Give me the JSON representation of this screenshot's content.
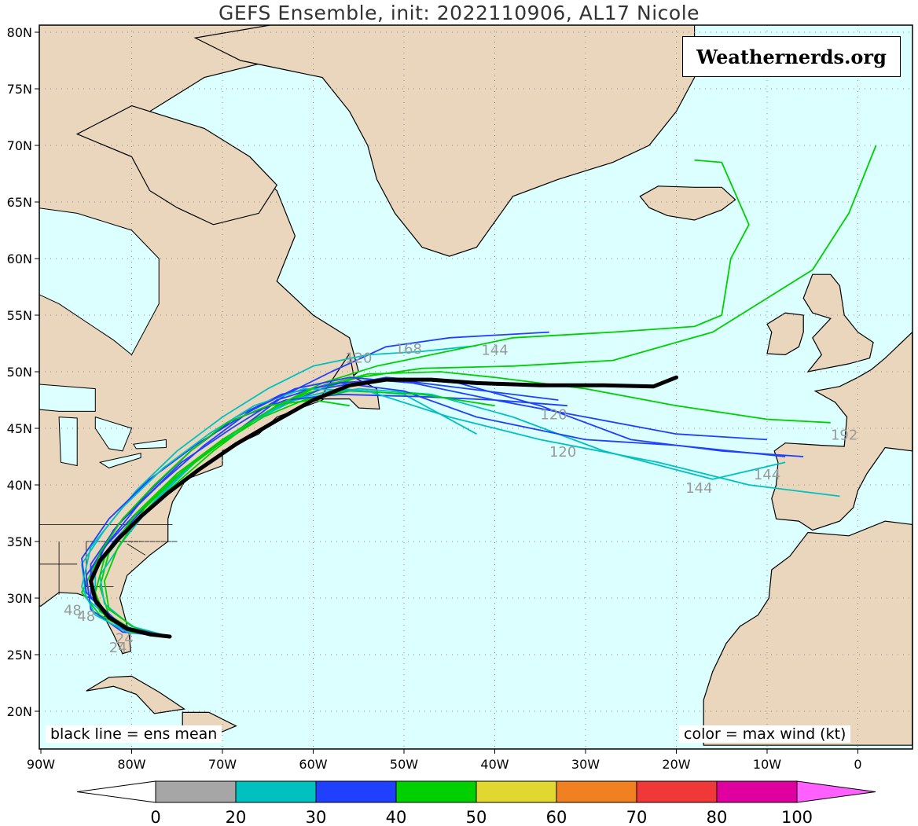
{
  "title": "GEFS Ensemble, init: 2022110906, AL17 Nicole",
  "brand": "Weathernerds.org",
  "notes": {
    "left": "black line = ens mean",
    "right": "color = max wind (kt)"
  },
  "axes": {
    "lat_labels": [
      "80N",
      "75N",
      "70N",
      "65N",
      "60N",
      "55N",
      "50N",
      "45N",
      "40N",
      "35N",
      "30N",
      "25N",
      "20N"
    ],
    "lon_labels": [
      "90W",
      "80W",
      "70W",
      "60W",
      "50W",
      "40W",
      "30W",
      "20W",
      "10W",
      "0"
    ]
  },
  "forecast_hour_labels": [
    "48",
    "48",
    "24",
    "24",
    "120",
    "168",
    "144",
    "120",
    "120",
    "144",
    "192",
    "144"
  ],
  "colors": {
    "ocean": "#dcffff",
    "land": "#ead6bc",
    "mean_track": "#000000"
  },
  "legend": {
    "labels": [
      "0",
      "20",
      "30",
      "40",
      "50",
      "60",
      "70",
      "80",
      "100"
    ],
    "bins": [
      {
        "range": "<0",
        "color": "#ffffff"
      },
      {
        "range": "0-20",
        "color": "#a6a6a6"
      },
      {
        "range": "20-30",
        "color": "#00c0c0"
      },
      {
        "range": "30-40",
        "color": "#2040ff"
      },
      {
        "range": "40-50",
        "color": "#00d000"
      },
      {
        "range": "50-60",
        "color": "#e0d830"
      },
      {
        "range": "60-70",
        "color": "#f08020"
      },
      {
        "range": "70-80",
        "color": "#f03838"
      },
      {
        "range": "80-100",
        "color": "#e000a0"
      },
      {
        "range": ">100",
        "color": "#ff60ff"
      }
    ]
  },
  "chart_data": {
    "type": "map",
    "lon_range": [
      -91,
      6
    ],
    "lat_range": [
      17,
      81
    ],
    "mean_track": [
      [
        -75.8,
        26.6
      ],
      [
        -78,
        26.8
      ],
      [
        -80.5,
        27.3
      ],
      [
        -82.5,
        28.3
      ],
      [
        -84,
        29.8
      ],
      [
        -84.5,
        31.5
      ],
      [
        -83.5,
        33.3
      ],
      [
        -81.5,
        35.2
      ],
      [
        -79,
        37.2
      ],
      [
        -76,
        39.3
      ],
      [
        -72.5,
        41.4
      ],
      [
        -68.5,
        43.6
      ],
      [
        -64,
        45.7
      ],
      [
        -60,
        47.5
      ],
      [
        -56,
        48.8
      ],
      [
        -52,
        49.3
      ],
      [
        -47,
        49.3
      ],
      [
        -42,
        49
      ],
      [
        -35,
        48.8
      ],
      [
        -28,
        48.8
      ],
      [
        -22.5,
        48.7
      ],
      [
        -20,
        49.5
      ]
    ],
    "member_tracks": [
      {
        "color": "#00d000",
        "points": [
          [
            -75.8,
            26.6
          ],
          [
            -80,
            27
          ],
          [
            -83.5,
            28.5
          ],
          [
            -85.5,
            30.5
          ],
          [
            -84,
            33
          ],
          [
            -80.5,
            36
          ],
          [
            -76,
            39.5
          ],
          [
            -71,
            43
          ],
          [
            -66,
            46
          ],
          [
            -61,
            48
          ],
          [
            -55,
            49.5
          ],
          [
            -48,
            50.3
          ],
          [
            -38,
            50.5
          ],
          [
            -27,
            51
          ],
          [
            -16,
            53.5
          ],
          [
            -5,
            59
          ],
          [
            -1,
            64
          ],
          [
            2,
            70
          ]
        ]
      },
      {
        "color": "#2040ff",
        "points": [
          [
            -75.8,
            26.6
          ],
          [
            -81,
            27.2
          ],
          [
            -84,
            29.5
          ],
          [
            -84.5,
            32
          ],
          [
            -82,
            35
          ],
          [
            -78,
            38.5
          ],
          [
            -73,
            42
          ],
          [
            -68,
            45
          ],
          [
            -63,
            48
          ],
          [
            -58,
            50
          ],
          [
            -52,
            52.2
          ],
          [
            -45,
            53
          ],
          [
            -34,
            53.5
          ]
        ]
      },
      {
        "color": "#00c0c0",
        "points": [
          [
            -75.8,
            26.6
          ],
          [
            -81.5,
            27.5
          ],
          [
            -85,
            30
          ],
          [
            -85.5,
            33
          ],
          [
            -83,
            36
          ],
          [
            -79.5,
            39.5
          ],
          [
            -75,
            43
          ],
          [
            -70,
            46
          ],
          [
            -65,
            48.5
          ],
          [
            -60,
            50.5
          ],
          [
            -54,
            51.5
          ],
          [
            -48,
            51.8
          ],
          [
            -42,
            52.3
          ]
        ]
      },
      {
        "color": "#2040ff",
        "points": [
          [
            -75.8,
            26.6
          ],
          [
            -80,
            27
          ],
          [
            -83.5,
            29
          ],
          [
            -84.5,
            31.5
          ],
          [
            -83,
            34.5
          ],
          [
            -79.5,
            37.5
          ],
          [
            -75,
            41
          ],
          [
            -70,
            44
          ],
          [
            -65,
            46.5
          ],
          [
            -59,
            48.5
          ],
          [
            -52,
            49.5
          ],
          [
            -44,
            49
          ],
          [
            -35,
            47
          ],
          [
            -25,
            44
          ],
          [
            -15,
            43
          ],
          [
            -6,
            42.5
          ]
        ]
      },
      {
        "color": "#00c0c0",
        "points": [
          [
            -75.8,
            26.6
          ],
          [
            -80.5,
            27.3
          ],
          [
            -84,
            29.5
          ],
          [
            -84,
            32.5
          ],
          [
            -81,
            35.5
          ],
          [
            -77,
            39
          ],
          [
            -72.5,
            42.5
          ],
          [
            -67,
            45.5
          ],
          [
            -62,
            47.5
          ],
          [
            -55,
            48.5
          ],
          [
            -47,
            48
          ],
          [
            -38,
            46
          ],
          [
            -28,
            43
          ],
          [
            -16,
            40.5
          ],
          [
            -8,
            42
          ]
        ]
      },
      {
        "color": "#2040ff",
        "points": [
          [
            -75.8,
            26.6
          ],
          [
            -81,
            27
          ],
          [
            -84.5,
            29
          ],
          [
            -85,
            32
          ],
          [
            -82.5,
            35
          ],
          [
            -79,
            38.5
          ],
          [
            -74.5,
            42
          ],
          [
            -69,
            45
          ],
          [
            -64,
            47.5
          ],
          [
            -58,
            49
          ],
          [
            -51,
            49.3
          ],
          [
            -43,
            48.5
          ],
          [
            -33,
            47.5
          ]
        ]
      },
      {
        "color": "#00d000",
        "points": [
          [
            -75.8,
            26.6
          ],
          [
            -79.5,
            27
          ],
          [
            -82.5,
            28.5
          ],
          [
            -83.5,
            31
          ],
          [
            -82.5,
            34
          ],
          [
            -79.5,
            37.5
          ],
          [
            -75,
            41
          ],
          [
            -70,
            44
          ],
          [
            -65,
            46.5
          ],
          [
            -60,
            48.5
          ],
          [
            -54,
            49.8
          ],
          [
            -46,
            50
          ],
          [
            -40,
            49.5
          ],
          [
            -30,
            48.5
          ],
          [
            -20,
            47
          ],
          [
            -10,
            45.8
          ],
          [
            -3,
            45.5
          ]
        ]
      },
      {
        "color": "#2040ff",
        "points": [
          [
            -75.8,
            26.6
          ],
          [
            -80.5,
            27
          ],
          [
            -84,
            29.5
          ],
          [
            -84.5,
            32.5
          ],
          [
            -82,
            36
          ],
          [
            -78,
            39.5
          ],
          [
            -73.5,
            43
          ],
          [
            -68.5,
            46
          ],
          [
            -63.5,
            48
          ],
          [
            -57,
            49
          ],
          [
            -50,
            48.3
          ],
          [
            -42,
            46
          ],
          [
            -30,
            44
          ],
          [
            -20,
            43.5
          ],
          [
            -8,
            42.5
          ]
        ]
      },
      {
        "color": "#00c0c0",
        "points": [
          [
            -75.8,
            26.6
          ],
          [
            -80,
            27.5
          ],
          [
            -83,
            29.5
          ],
          [
            -83.5,
            32
          ],
          [
            -81,
            35
          ],
          [
            -77.5,
            38.5
          ],
          [
            -73,
            42
          ],
          [
            -68,
            45
          ],
          [
            -62.5,
            47.5
          ],
          [
            -57,
            48.5
          ],
          [
            -50,
            48
          ],
          [
            -42,
            44.5
          ]
        ]
      },
      {
        "color": "#2040ff",
        "points": [
          [
            -75.8,
            26.6
          ],
          [
            -81,
            27.5
          ],
          [
            -85,
            30.5
          ],
          [
            -85.5,
            33.5
          ],
          [
            -82.5,
            37
          ],
          [
            -78,
            40.5
          ],
          [
            -73,
            43.5
          ],
          [
            -68,
            46
          ],
          [
            -63,
            47.5
          ],
          [
            -57,
            48
          ],
          [
            -48,
            47.8
          ],
          [
            -40,
            47.5
          ],
          [
            -32,
            47
          ]
        ]
      },
      {
        "color": "#00d000",
        "points": [
          [
            -75.8,
            26.6
          ],
          [
            -80,
            27
          ],
          [
            -83,
            28.5
          ],
          [
            -84,
            30.5
          ],
          [
            -83,
            33.5
          ],
          [
            -80,
            37
          ],
          [
            -75.5,
            40.5
          ],
          [
            -70.5,
            43.5
          ],
          [
            -65.5,
            46
          ],
          [
            -61,
            47.5
          ],
          [
            -56,
            48.3
          ],
          [
            -48,
            48
          ],
          [
            -40,
            47
          ]
        ]
      },
      {
        "color": "#00c0c0",
        "points": [
          [
            -75.8,
            26.6
          ],
          [
            -80.5,
            27
          ],
          [
            -84,
            28.5
          ],
          [
            -85.5,
            31
          ],
          [
            -84.5,
            34.5
          ],
          [
            -81,
            38
          ],
          [
            -76.5,
            41.5
          ],
          [
            -71.5,
            44.5
          ],
          [
            -66.5,
            47
          ],
          [
            -61,
            48.5
          ],
          [
            -54,
            48.3
          ],
          [
            -45,
            46
          ],
          [
            -35,
            44
          ],
          [
            -22,
            42
          ],
          [
            -12,
            40
          ],
          [
            -2,
            39
          ]
        ]
      },
      {
        "color": "#00d000",
        "points": [
          [
            -75.8,
            26.6
          ],
          [
            -79.5,
            27.3
          ],
          [
            -82.5,
            29
          ],
          [
            -83,
            31.5
          ],
          [
            -81.5,
            34.5
          ],
          [
            -78.5,
            38
          ],
          [
            -74,
            41.5
          ],
          [
            -69,
            44.5
          ],
          [
            -64,
            47
          ],
          [
            -59,
            49
          ],
          [
            -53,
            50.5
          ],
          [
            -47,
            51.5
          ],
          [
            -38,
            53
          ],
          [
            -27,
            53.5
          ],
          [
            -18,
            54
          ],
          [
            -15,
            55
          ],
          [
            -14,
            60
          ],
          [
            -12,
            63
          ],
          [
            -15,
            68.5
          ],
          [
            -18,
            68.7
          ]
        ]
      },
      {
        "color": "#2040ff",
        "points": [
          [
            -75.8,
            26.6
          ],
          [
            -81,
            27.5
          ],
          [
            -84.5,
            30
          ],
          [
            -84.5,
            33
          ],
          [
            -81.5,
            36.5
          ],
          [
            -77,
            40
          ],
          [
            -72,
            43.5
          ],
          [
            -67,
            46.5
          ],
          [
            -62,
            48.5
          ],
          [
            -56,
            49.5
          ],
          [
            -49,
            49
          ],
          [
            -40,
            47.5
          ],
          [
            -30,
            46
          ],
          [
            -20,
            44.5
          ],
          [
            -10,
            44
          ]
        ]
      },
      {
        "color": "#00d000",
        "points": [
          [
            -75.8,
            26.6
          ],
          [
            -80,
            27
          ],
          [
            -83.5,
            28.8
          ],
          [
            -84.5,
            31.3
          ],
          [
            -83.5,
            34
          ],
          [
            -81,
            37
          ],
          [
            -77.5,
            40
          ],
          [
            -73.5,
            43
          ],
          [
            -69.5,
            45.5
          ],
          [
            -65,
            47
          ],
          [
            -60,
            47.5
          ],
          [
            -56,
            47
          ]
        ]
      }
    ],
    "hour_labels": [
      {
        "text": "48",
        "lon": -86.5,
        "lat": 28.5
      },
      {
        "text": "48",
        "lon": -85,
        "lat": 28.0
      },
      {
        "text": "24",
        "lon": -81.5,
        "lat": 25.2
      },
      {
        "text": "24",
        "lon": -80.8,
        "lat": 26.0
      },
      {
        "text": "120",
        "lon": -55,
        "lat": 50.8
      },
      {
        "text": "168",
        "lon": -49.5,
        "lat": 51.6
      },
      {
        "text": "144",
        "lon": -40,
        "lat": 51.5
      },
      {
        "text": "120",
        "lon": -33.5,
        "lat": 45.8
      },
      {
        "text": "120",
        "lon": -32.5,
        "lat": 42.5
      },
      {
        "text": "144",
        "lon": -17.5,
        "lat": 39.3
      },
      {
        "text": "192",
        "lon": -1.5,
        "lat": 44.0
      },
      {
        "text": "144",
        "lon": -10,
        "lat": 40.5
      }
    ]
  }
}
